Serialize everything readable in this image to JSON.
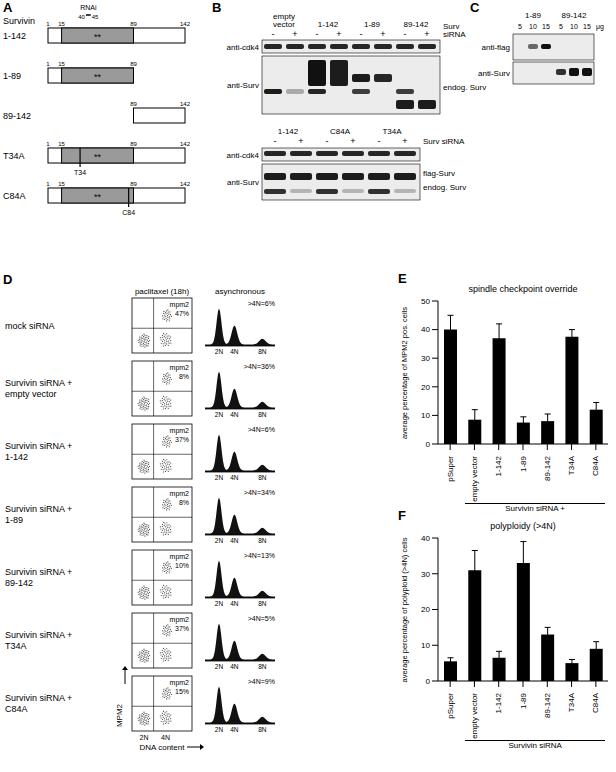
{
  "chart_data": [
    {
      "type": "bar",
      "panel_label": "E",
      "title": "spindle checkpoint override",
      "y_label": "average percentage of MPM2 pos. cells",
      "group_label": "Survivin siRNA +",
      "categories": [
        "pSuper",
        "empty vector",
        "1-142",
        "1-89",
        "89-142",
        "T34A",
        "C84A"
      ],
      "values": [
        40,
        8.5,
        37,
        7.5,
        8,
        37.5,
        12
      ],
      "errors": [
        5,
        3.5,
        5,
        2,
        2.5,
        2.5,
        2.5
      ],
      "color": "#000000",
      "ylim": [
        0,
        50
      ],
      "yticks": [
        0,
        10,
        20,
        30,
        40,
        50
      ]
    },
    {
      "type": "bar",
      "panel_label": "F",
      "title": "polyploidy (>4N)",
      "y_label": "average percentage of polyploid (>4N) cells",
      "group_label": "Survivin siRNA",
      "categories": [
        "pSuper",
        "empty vector",
        "1-142",
        "1-89",
        "89-142",
        "T34A",
        "C84A"
      ],
      "values": [
        5.5,
        31,
        6.5,
        33,
        13,
        5,
        9
      ],
      "errors": [
        1,
        5.5,
        1.8,
        6,
        2,
        1,
        2
      ],
      "color": "#000000",
      "ylim": [
        0,
        40
      ],
      "yticks": [
        0,
        10,
        20,
        30,
        40
      ]
    }
  ],
  "panels": {
    "A": {
      "panel_label": "A",
      "title": "Survivin",
      "domain_marks": [
        15,
        89
      ],
      "stars": "**",
      "rnai": {
        "label": "RNAi",
        "start": 40,
        "end": 45
      },
      "constructs": [
        {
          "label": "1-142",
          "start": 1,
          "end": 142
        },
        {
          "label": "1-89",
          "start": 1,
          "end": 89
        },
        {
          "label": "89-142",
          "start": 89,
          "end": 142
        },
        {
          "label": "T34A",
          "start": 1,
          "end": 142,
          "mutation": {
            "label": "T34",
            "position": 34
          }
        },
        {
          "label": "C84A",
          "start": 1,
          "end": 142,
          "mutation": {
            "label": "C84",
            "position": 84
          }
        }
      ]
    },
    "B": {
      "panel_label": "B",
      "top": {
        "lanes": [
          "empty vector",
          "1-142",
          "1-89",
          "89-142"
        ],
        "signs": [
          "-",
          "+"
        ],
        "treatment": "Surv siRNA",
        "rows": [
          "anti-cdk4",
          "anti-Surv"
        ],
        "band_labels": [
          "endog. Surv"
        ]
      },
      "bottom": {
        "lanes": [
          "1-142",
          "C84A",
          "T34A"
        ],
        "signs": [
          "-",
          "+"
        ],
        "treatment": "Surv siRNA",
        "rows": [
          "anti-cdk4",
          "anti-Surv"
        ],
        "band_labels": [
          "flag-Surv",
          "endog. Surv"
        ]
      }
    },
    "C": {
      "panel_label": "C",
      "lanes": [
        "1-89",
        "89-142"
      ],
      "amounts": [
        "5",
        "10",
        "15"
      ],
      "unit": "μg",
      "rows": [
        "anti-flag",
        "anti-Surv"
      ]
    },
    "D": {
      "panel_label": "D",
      "headers": [
        "paclitaxel (18h)",
        "asynchronous"
      ],
      "marker_label": "mpm2",
      "rows": [
        {
          "label": [
            "mock siRNA"
          ],
          "mpm2": "47%",
          "polyploid": ">4N=6%"
        },
        {
          "label": [
            "Survivin siRNA +",
            "empty vector"
          ],
          "mpm2": "8%",
          "polyploid": ">4N=36%"
        },
        {
          "label": [
            "Survivin siRNA +",
            "1-142"
          ],
          "mpm2": "37%",
          "polyploid": ">4N=6%"
        },
        {
          "label": [
            "Survivin siRNA +",
            "1-89"
          ],
          "mpm2": "8%",
          "polyploid": ">4N=34%"
        },
        {
          "label": [
            "Survivin siRNA +",
            "89-142"
          ],
          "mpm2": "10%",
          "polyploid": ">4N=13%"
        },
        {
          "label": [
            "Survivin siRNA +",
            "T34A"
          ],
          "mpm2": "37%",
          "polyploid": ">4N=5%"
        },
        {
          "label": [
            "Survivin siRNA +",
            "C84A"
          ],
          "mpm2": "15%",
          "polyploid": ">4N=9%"
        }
      ],
      "hist_ticks": [
        "2N",
        "4N",
        "8N"
      ],
      "dot_ticks": [
        "2N",
        "4N"
      ],
      "x_label": "DNA content",
      "y_label": "MPM2"
    }
  }
}
